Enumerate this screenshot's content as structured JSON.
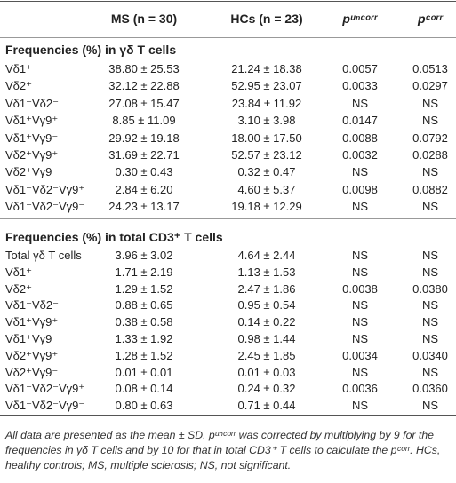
{
  "header": {
    "columns": [
      "MS (n = 30)",
      "HCs (n = 23)",
      "pᵘⁿᶜᵒʳʳ",
      "pᶜᵒʳʳ"
    ]
  },
  "sections": [
    {
      "title": "Frequencies (%) in γδ T cells",
      "rows": [
        [
          "Vδ1⁺",
          "38.80 ± 25.53",
          "21.24 ± 18.38",
          "0.0057",
          "0.0513"
        ],
        [
          "Vδ2⁺",
          "32.12 ± 22.88",
          "52.95 ± 23.07",
          "0.0033",
          "0.0297"
        ],
        [
          "Vδ1⁻Vδ2⁻",
          "27.08 ± 15.47",
          "23.84 ± 11.92",
          "NS",
          "NS"
        ],
        [
          "Vδ1⁺Vγ9⁺",
          "8.85 ± 11.09",
          "3.10 ± 3.98",
          "0.0147",
          "NS"
        ],
        [
          "Vδ1⁺Vγ9⁻",
          "29.92 ± 19.18",
          "18.00 ± 17.50",
          "0.0088",
          "0.0792"
        ],
        [
          "Vδ2⁺Vγ9⁺",
          "31.69 ± 22.71",
          "52.57 ± 23.12",
          "0.0032",
          "0.0288"
        ],
        [
          "Vδ2⁺Vγ9⁻",
          "0.30 ± 0.43",
          "0.32 ± 0.47",
          "NS",
          "NS"
        ],
        [
          "Vδ1⁻Vδ2⁻Vγ9⁺",
          "2.84 ± 6.20",
          "4.60 ± 5.37",
          "0.0098",
          "0.0882"
        ],
        [
          "Vδ1⁻Vδ2⁻Vγ9⁻",
          "24.23 ± 13.17",
          "19.18 ± 12.29",
          "NS",
          "NS"
        ]
      ]
    },
    {
      "title": "Frequencies (%) in total CD3⁺ T cells",
      "rows": [
        [
          "Total γδ T cells",
          "3.96 ± 3.02",
          "4.64 ± 2.44",
          "NS",
          "NS"
        ],
        [
          "Vδ1⁺",
          "1.71 ± 2.19",
          "1.13 ± 1.53",
          "NS",
          "NS"
        ],
        [
          "Vδ2⁺",
          "1.29 ± 1.52",
          "2.47 ± 1.86",
          "0.0038",
          "0.0380"
        ],
        [
          "Vδ1⁻Vδ2⁻",
          "0.88 ± 0.65",
          "0.95 ± 0.54",
          "NS",
          "NS"
        ],
        [
          "Vδ1⁺Vγ9⁺",
          "0.38 ± 0.58",
          "0.14 ± 0.22",
          "NS",
          "NS"
        ],
        [
          "Vδ1⁺Vγ9⁻",
          "1.33 ± 1.92",
          "0.98 ± 1.44",
          "NS",
          "NS"
        ],
        [
          "Vδ2⁺Vγ9⁺",
          "1.28 ± 1.52",
          "2.45 ± 1.85",
          "0.0034",
          "0.0340"
        ],
        [
          "Vδ2⁺Vγ9⁻",
          "0.01 ± 0.01",
          "0.01 ± 0.03",
          "NS",
          "NS"
        ],
        [
          "Vδ1⁻Vδ2⁻Vγ9⁺",
          "0.08 ± 0.14",
          "0.24 ± 0.32",
          "0.0036",
          "0.0360"
        ],
        [
          "Vδ1⁻Vδ2⁻Vγ9⁻",
          "0.80 ± 0.63",
          "0.71 ± 0.44",
          "NS",
          "NS"
        ]
      ]
    }
  ],
  "footnote": "All data are presented as the mean ± SD. pᵘⁿᶜᵒʳʳ was corrected by multiplying by 9 for the frequencies in γδ T cells and by 10 for that in total CD3⁺ T cells to calculate the pᶜᵒʳʳ. HCs, healthy controls; MS, multiple sclerosis; NS, not significant."
}
